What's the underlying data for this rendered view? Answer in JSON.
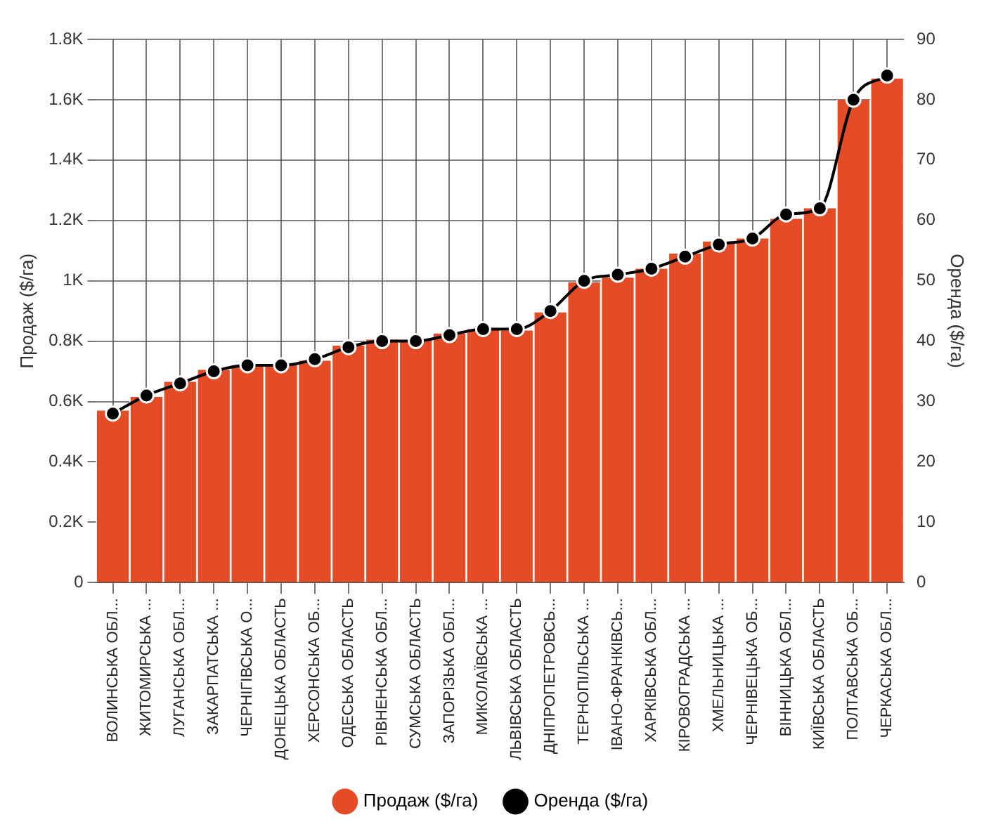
{
  "chart_data": {
    "type": "bar",
    "ylabel": "Продаж ($/га)",
    "y2label": "Оренда ($/га)",
    "categories": [
      "ВОЛИНСЬКА ОБЛ...",
      "ЖИТОМИРСЬКА ...",
      "ЛУГАНСЬКА ОБЛ...",
      "ЗАКАРПАТСЬКА ...",
      "ЧЕРНІГІВСЬКА О...",
      "ДОНЕЦЬКА ОБЛАСТЬ",
      "ХЕРСОНСЬКА ОБ...",
      "ОДЕСЬКА ОБЛАСТЬ",
      "РІВНЕНСЬКА ОБЛ...",
      "СУМСЬКА ОБЛАСТЬ",
      "ЗАПОРІЗЬКА ОБЛ...",
      "МИКОЛАЇВСЬКА ...",
      "ЛЬВІВСЬКА ОБЛАСТЬ",
      "ДНІПРОПЕТРОВСЬ...",
      "ТЕРНОПІЛЬСЬКА ...",
      "ІВАНО-ФРАНКІВСЬ...",
      "ХАРКІВСЬКА ОБЛ...",
      "КІРОВОГРАДСЬКА ...",
      "ХМЕЛЬНИЦЬКА ...",
      "ЧЕРНІВЕЦЬКА ОБ...",
      "ВІННИЦЬКА ОБЛ...",
      "КИЇВСЬКА ОБЛАСТЬ",
      "ПОЛТАВСЬКА ОБ...",
      "ЧЕРКАСЬКА ОБЛ..."
    ],
    "series": [
      {
        "name": "Продаж ($/га)",
        "color": "#e34c26",
        "values": [
          570,
          615,
          665,
          705,
          720,
          720,
          735,
          785,
          805,
          800,
          825,
          840,
          835,
          895,
          995,
          1010,
          1040,
          1090,
          1130,
          1140,
          1205,
          1240,
          1600,
          1670
        ]
      },
      {
        "name": "Оренда ($/га)",
        "type": "line",
        "axis": "y2",
        "color": "#000000",
        "values": [
          28,
          31,
          33,
          35,
          36,
          36,
          37,
          39,
          40,
          40,
          41,
          42,
          42,
          45,
          50,
          51,
          52,
          54,
          56,
          57,
          61,
          62,
          80,
          84
        ]
      }
    ],
    "ylim": [
      0,
      1800
    ],
    "yticks": [
      {
        "value": 0,
        "label": "0"
      },
      {
        "value": 200,
        "label": "0.2K"
      },
      {
        "value": 400,
        "label": "0.4K"
      },
      {
        "value": 600,
        "label": "0.6K"
      },
      {
        "value": 800,
        "label": "0.8K"
      },
      {
        "value": 1000,
        "label": "1K"
      },
      {
        "value": 1200,
        "label": "1.2K"
      },
      {
        "value": 1400,
        "label": "1.4K"
      },
      {
        "value": 1600,
        "label": "1.6K"
      },
      {
        "value": 1800,
        "label": "1.8K"
      }
    ],
    "y2lim": [
      0,
      90
    ],
    "y2ticks": [
      0,
      10,
      20,
      30,
      40,
      50,
      60,
      70,
      80,
      90
    ],
    "grid": true,
    "legend": "bottom",
    "marker": "circle",
    "line_style": "solid"
  }
}
